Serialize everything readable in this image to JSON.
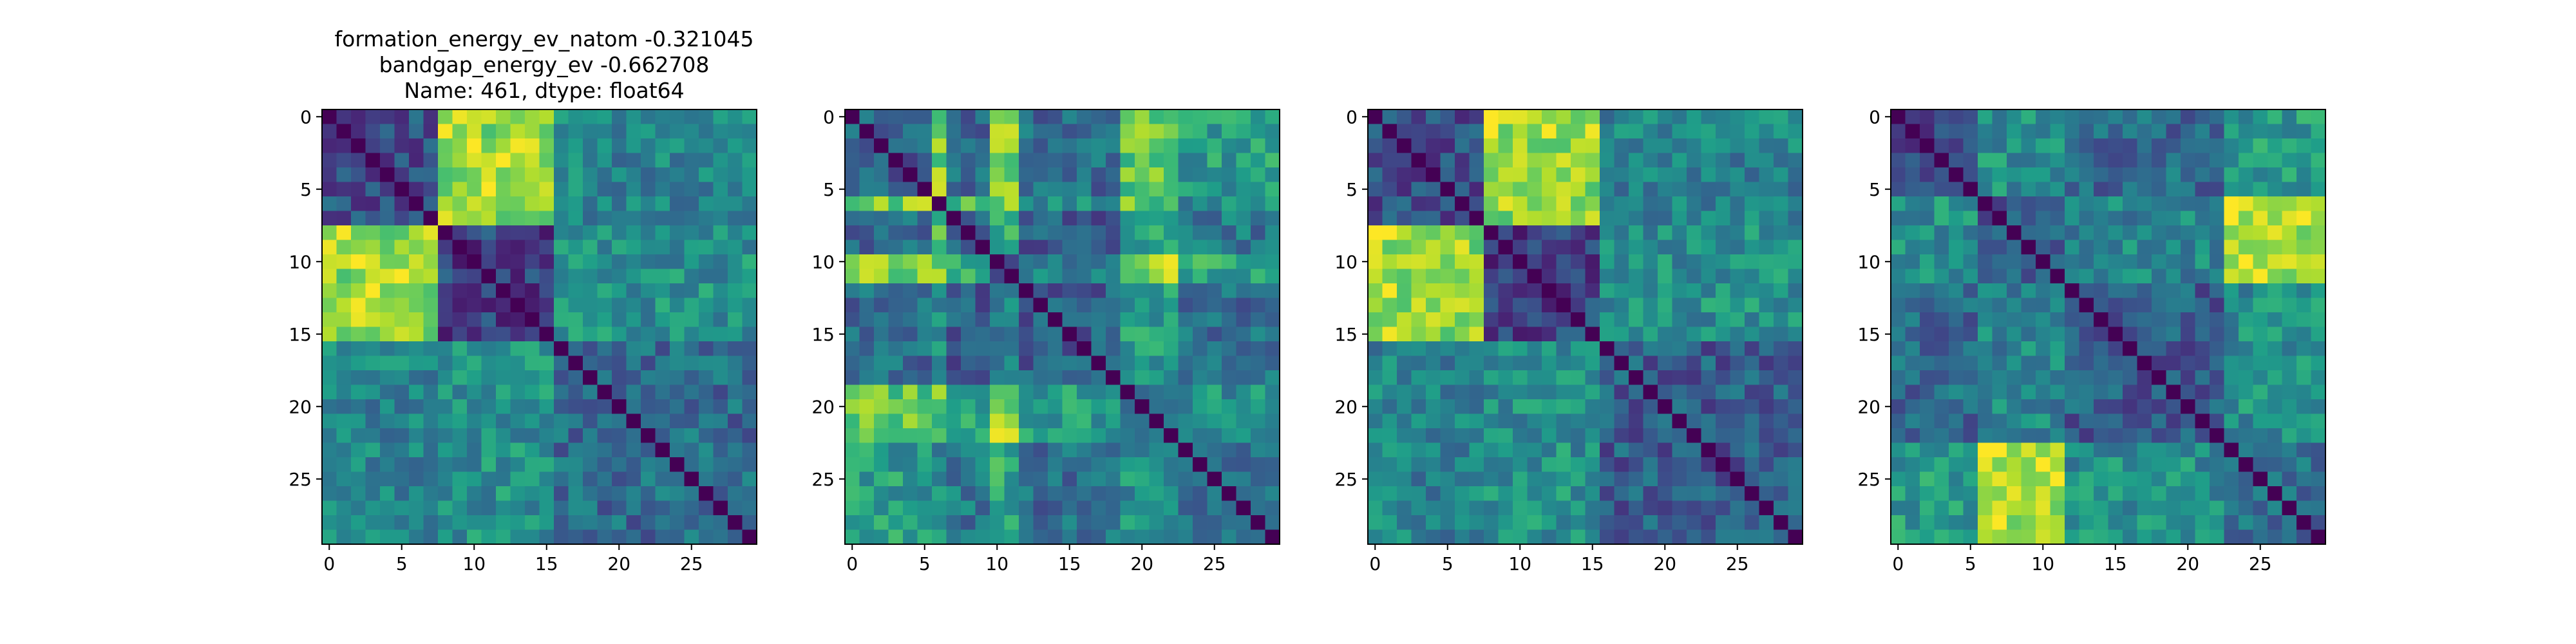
{
  "figure": {
    "title_lines": [
      "formation_energy_ev_natom   -0.321045",
      "bandgap_energy_ev          -0.662708",
      "Name: 461, dtype: float64"
    ]
  },
  "chart_data": [
    {
      "type": "heatmap",
      "n": 30,
      "colormap": "viridis",
      "xticks": [
        0,
        5,
        10,
        15,
        20,
        25
      ],
      "yticks": [
        0,
        5,
        10,
        15,
        20,
        25
      ],
      "xlim": [
        -0.5,
        29.5
      ],
      "ylim": [
        29.5,
        -0.5
      ],
      "grid": false,
      "diagonal": 0,
      "groups": [
        [
          0,
          7
        ],
        [
          8,
          15
        ],
        [
          16,
          29
        ]
      ],
      "group_values": [
        [
          0.25,
          0.85,
          0.45
        ],
        [
          0.85,
          0.2,
          0.5
        ],
        [
          0.45,
          0.5,
          0.35
        ]
      ]
    },
    {
      "type": "heatmap",
      "n": 30,
      "colormap": "viridis",
      "xticks": [
        0,
        5,
        10,
        15,
        20,
        25
      ],
      "yticks": [
        0,
        5,
        10,
        15,
        20,
        25
      ],
      "xlim": [
        -0.5,
        29.5
      ],
      "ylim": [
        29.5,
        -0.5
      ],
      "grid": false,
      "diagonal": 0,
      "groups": [
        [
          0,
          5
        ],
        [
          6,
          6
        ],
        [
          7,
          9
        ],
        [
          10,
          11
        ],
        [
          12,
          18
        ],
        [
          19,
          22
        ],
        [
          23,
          29
        ]
      ],
      "group_values": [
        [
          0.3,
          0.8,
          0.35,
          0.8,
          0.35,
          0.75,
          0.55
        ],
        [
          0.8,
          0.0,
          0.7,
          0.85,
          0.5,
          0.75,
          0.5
        ],
        [
          0.35,
          0.7,
          0.3,
          0.6,
          0.3,
          0.6,
          0.4
        ],
        [
          0.8,
          0.85,
          0.6,
          0.1,
          0.45,
          0.85,
          0.6
        ],
        [
          0.35,
          0.5,
          0.3,
          0.45,
          0.3,
          0.55,
          0.35
        ],
        [
          0.75,
          0.75,
          0.6,
          0.85,
          0.55,
          0.35,
          0.5
        ],
        [
          0.55,
          0.5,
          0.4,
          0.6,
          0.35,
          0.5,
          0.35
        ]
      ]
    },
    {
      "type": "heatmap",
      "n": 30,
      "colormap": "viridis",
      "xticks": [
        0,
        5,
        10,
        15,
        20,
        25
      ],
      "yticks": [
        0,
        5,
        10,
        15,
        20,
        25
      ],
      "xlim": [
        -0.5,
        29.5
      ],
      "ylim": [
        29.5,
        -0.5
      ],
      "grid": false,
      "diagonal": 0,
      "groups": [
        [
          0,
          7
        ],
        [
          8,
          15
        ],
        [
          16,
          29
        ]
      ],
      "group_values": [
        [
          0.25,
          0.85,
          0.45
        ],
        [
          0.85,
          0.2,
          0.5
        ],
        [
          0.45,
          0.5,
          0.3
        ]
      ]
    },
    {
      "type": "heatmap",
      "n": 30,
      "colormap": "viridis",
      "xticks": [
        0,
        5,
        10,
        15,
        20,
        25
      ],
      "yticks": [
        0,
        5,
        10,
        15,
        20,
        25
      ],
      "xlim": [
        -0.5,
        29.5
      ],
      "ylim": [
        29.5,
        -0.5
      ],
      "grid": false,
      "diagonal": 0,
      "groups": [
        [
          0,
          5
        ],
        [
          6,
          11
        ],
        [
          12,
          22
        ],
        [
          23,
          29
        ]
      ],
      "group_values": [
        [
          0.25,
          0.5,
          0.35,
          0.55
        ],
        [
          0.5,
          0.3,
          0.45,
          0.9
        ],
        [
          0.35,
          0.45,
          0.3,
          0.5
        ],
        [
          0.55,
          0.9,
          0.5,
          0.35
        ]
      ]
    }
  ]
}
